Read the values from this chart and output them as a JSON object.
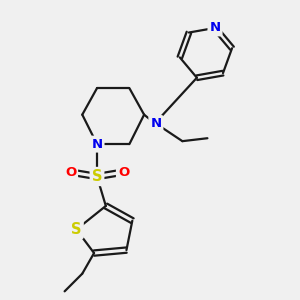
{
  "background_color": "#f0f0f0",
  "bond_color": "#1a1a1a",
  "bond_width": 1.6,
  "atom_colors": {
    "N": "#0000ee",
    "S": "#cccc00",
    "O": "#ff0000"
  },
  "font_size": 8.5,
  "fig_width": 3.0,
  "fig_height": 3.0,
  "dpi": 100,
  "xlim": [
    0,
    10
  ],
  "ylim": [
    0,
    10
  ]
}
